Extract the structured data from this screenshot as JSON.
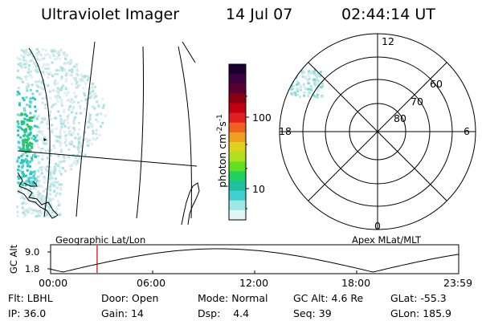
{
  "header": {
    "instrument": "Ultraviolet Imager",
    "date": "14 Jul 07",
    "time": "02:44:14 UT"
  },
  "colorbar": {
    "label": "photon cm⁻²s⁻¹",
    "label_base": "photon cm",
    "label_exp1": "-2",
    "label_mid": "s",
    "label_exp2": "-1",
    "tick_labels": [
      "100",
      "10"
    ],
    "colors_top_to_bottom": [
      "#1a0030",
      "#3a0040",
      "#5a0030",
      "#8a0010",
      "#c00010",
      "#e02020",
      "#f06020",
      "#f0a020",
      "#e0d020",
      "#b0e020",
      "#60e020",
      "#20d060",
      "#20c0a0",
      "#40d0d0",
      "#a0e8e8",
      "#e0f4f4"
    ]
  },
  "polar_plot": {
    "labels": {
      "top": "12",
      "bottom": "0",
      "left": "18",
      "right": "6",
      "ring60": "60",
      "ring70": "70",
      "ring80": "80"
    }
  },
  "timeline": {
    "left_caption": "Geographic Lat/Lon",
    "right_caption": "Apex MLat/MLT",
    "axis_title": "GC Alt",
    "y_ticks": [
      "9.0",
      "1.8"
    ],
    "x_ticks": [
      "00:00",
      "06:00",
      "12:00",
      "18:00",
      "23:59"
    ],
    "current_time_fraction": 0.114,
    "marker_color": "#cc0000"
  },
  "footer": {
    "row1": [
      {
        "label": "Flt:",
        "value": "LBHL"
      },
      {
        "label": "Door:",
        "value": "Open"
      },
      {
        "label": "Mode:",
        "value": "Normal"
      },
      {
        "label": "GC Alt:",
        "value": "4.6 Re"
      },
      {
        "label": "GLat:",
        "value": "-55.3"
      }
    ],
    "row2": [
      {
        "label": "IP:",
        "value": "36.0"
      },
      {
        "label": "Gain:",
        "value": "14"
      },
      {
        "label": "Dsp:",
        "value": "4.4"
      },
      {
        "label": "Seq:",
        "value": "39"
      },
      {
        "label": "GLon:",
        "value": "185.9"
      }
    ]
  }
}
